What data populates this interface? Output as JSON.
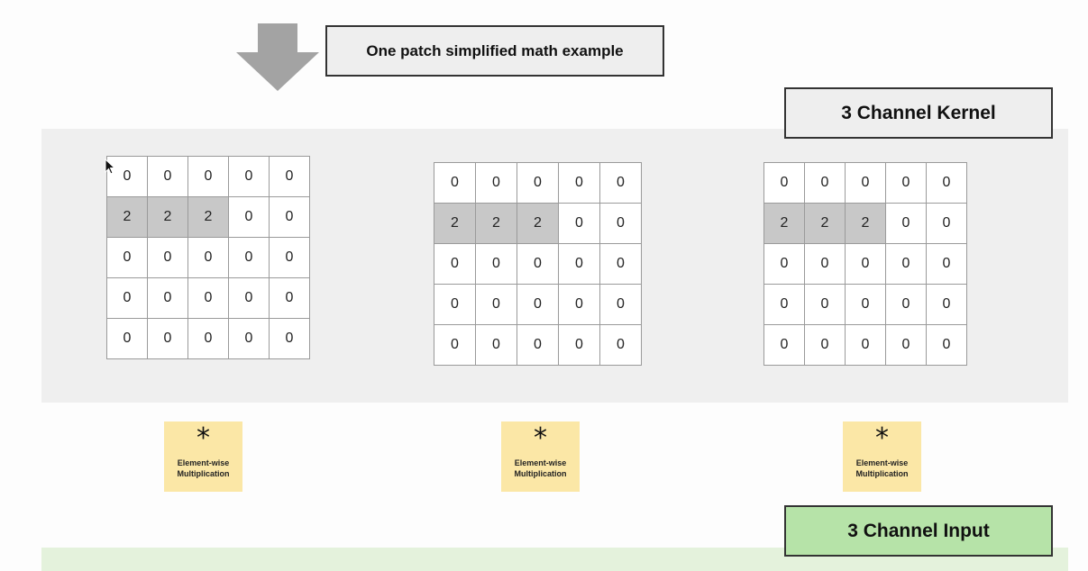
{
  "caption": "One patch simplified math example",
  "kernel_label": "3 Channel Kernel",
  "input_label": "3 Channel Input",
  "matrices": [
    {
      "rows": [
        [
          "0",
          "0",
          "0",
          "0",
          "0"
        ],
        [
          "2",
          "2",
          "2",
          "0",
          "0"
        ],
        [
          "0",
          "0",
          "0",
          "0",
          "0"
        ],
        [
          "0",
          "0",
          "0",
          "0",
          "0"
        ],
        [
          "0",
          "0",
          "0",
          "0",
          "0"
        ]
      ]
    },
    {
      "rows": [
        [
          "0",
          "0",
          "0",
          "0",
          "0"
        ],
        [
          "2",
          "2",
          "2",
          "0",
          "0"
        ],
        [
          "0",
          "0",
          "0",
          "0",
          "0"
        ],
        [
          "0",
          "0",
          "0",
          "0",
          "0"
        ],
        [
          "0",
          "0",
          "0",
          "0",
          "0"
        ]
      ]
    },
    {
      "rows": [
        [
          "0",
          "0",
          "0",
          "0",
          "0"
        ],
        [
          "2",
          "2",
          "2",
          "0",
          "0"
        ],
        [
          "0",
          "0",
          "0",
          "0",
          "0"
        ],
        [
          "0",
          "0",
          "0",
          "0",
          "0"
        ],
        [
          "0",
          "0",
          "0",
          "0",
          "0"
        ]
      ]
    }
  ],
  "operation": {
    "symbol": "*",
    "line1": "Element-wise",
    "line2": "Multiplication"
  },
  "colors": {
    "highlight": "#c8c8c8",
    "note": "#fbe7a6",
    "input_box": "#b6e3a8",
    "panel": "#efefef"
  }
}
